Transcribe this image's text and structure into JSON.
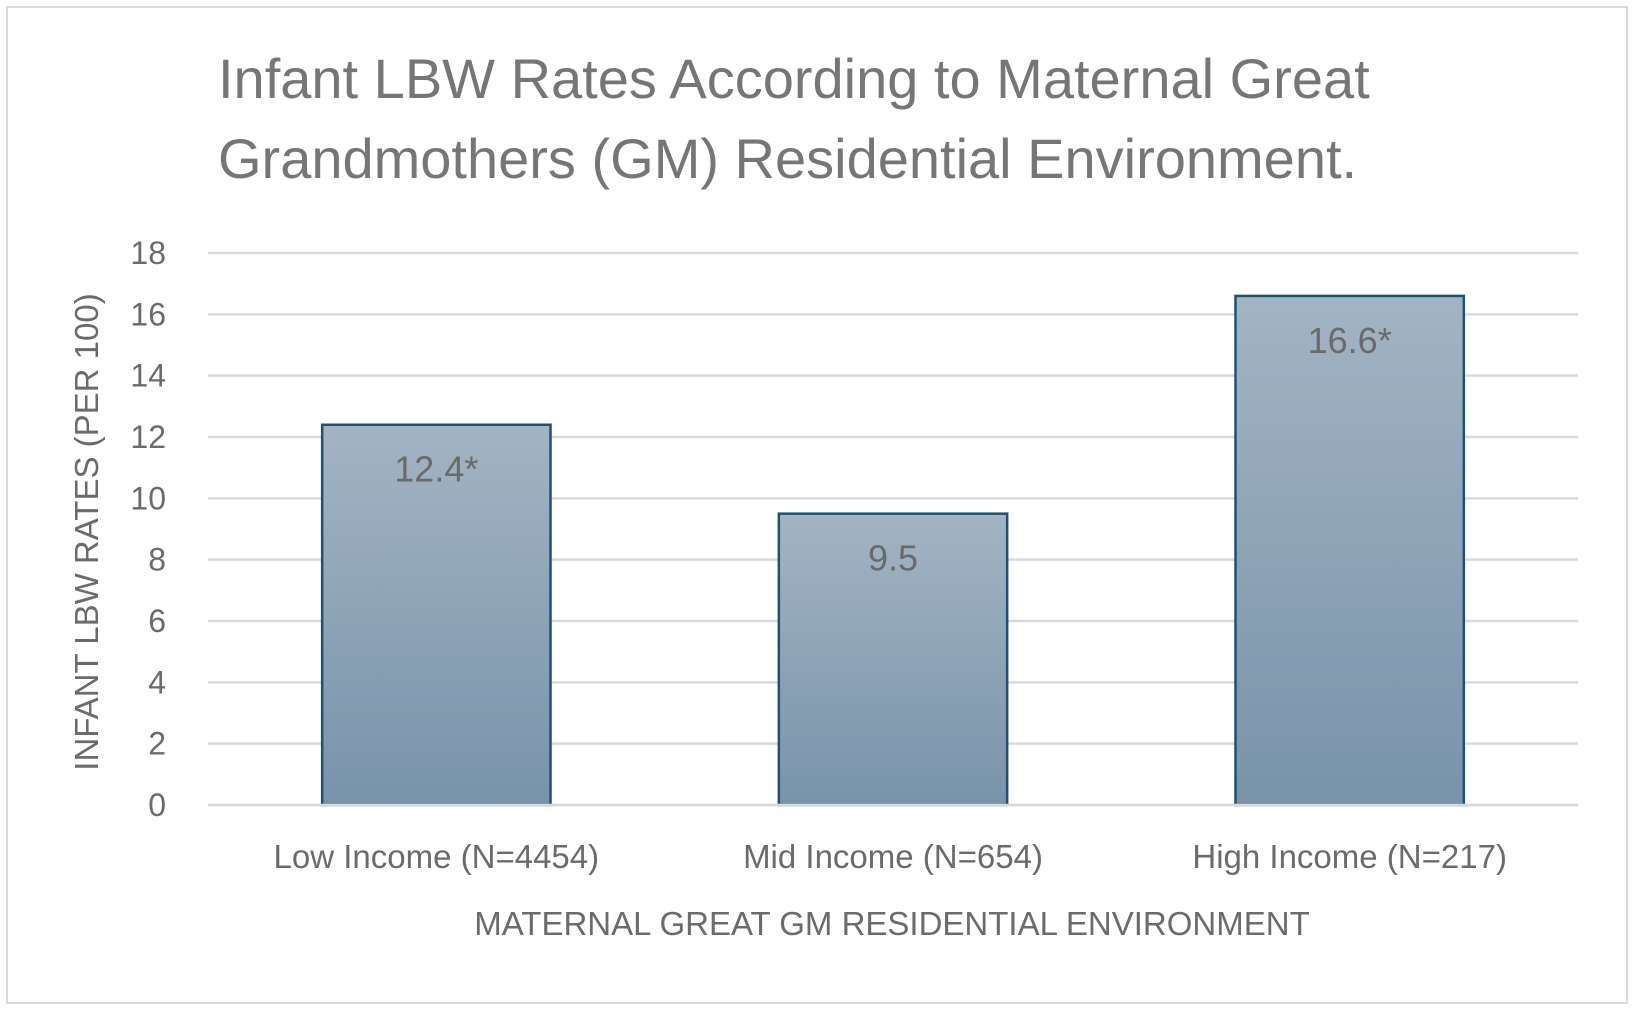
{
  "chart_data": {
    "type": "bar",
    "title_lines": [
      "Infant LBW Rates According to Maternal Great",
      "Grandmothers (GM) Residential Environment."
    ],
    "categories": [
      "Low Income (N=4454)",
      "Mid Income (N=654)",
      "High Income (N=217)"
    ],
    "values": [
      12.4,
      9.5,
      16.6
    ],
    "data_labels": [
      "12.4*",
      "9.5",
      "16.6*"
    ],
    "xlabel": "MATERNAL GREAT GM RESIDENTIAL ENVIRONMENT",
    "ylabel": "INFANT LBW RATES (PER 100)",
    "ylim": [
      0,
      18
    ],
    "yticks": [
      "0",
      "2",
      "4",
      "6",
      "8",
      "10",
      "12",
      "14",
      "16",
      "18"
    ],
    "grid": true,
    "legend": "none",
    "colors": {
      "bar_top": "#a3b4c3",
      "bar_bottom": "#7893aa",
      "bar_border": "#1f5170",
      "grid": "#d9d9d9",
      "text": "#6b6b6b"
    }
  }
}
